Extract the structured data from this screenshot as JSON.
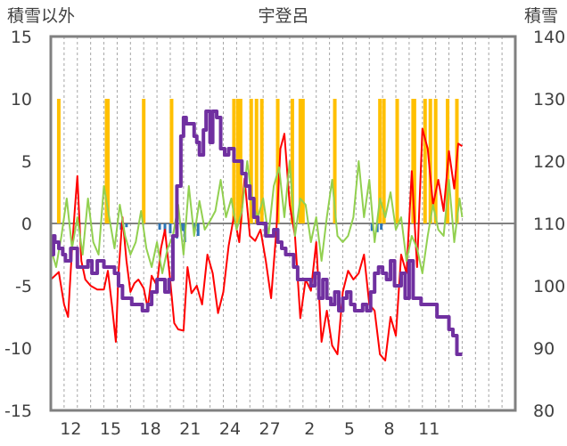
{
  "chart_data": {
    "type": "line",
    "title": "宇登呂",
    "left_axis_label": "積雪以外",
    "right_axis_label": "積雪",
    "left_ylim": [
      -15,
      15
    ],
    "left_yticks": [
      "15",
      "10",
      "5",
      "0",
      "-5",
      "-10",
      "-15"
    ],
    "right_ylim": [
      80,
      140
    ],
    "right_yticks": [
      "140",
      "130",
      "120",
      "110",
      "100",
      "90",
      "80"
    ],
    "xlim": [
      0,
      35
    ],
    "x_ticks": [
      {
        "x": 1.5,
        "label": "12"
      },
      {
        "x": 4.5,
        "label": "15"
      },
      {
        "x": 7.5,
        "label": "18"
      },
      {
        "x": 10.5,
        "label": "21"
      },
      {
        "x": 13.5,
        "label": "24"
      },
      {
        "x": 16.5,
        "label": "27"
      },
      {
        "x": 19.5,
        "label": "2"
      },
      {
        "x": 22.5,
        "label": "5"
      },
      {
        "x": 25.5,
        "label": "8"
      },
      {
        "x": 28.5,
        "label": "11"
      }
    ],
    "grid": "vertical dashed lines at each day, solid line at zero",
    "colors": {
      "temperature": "#ff0000",
      "wind": "#92d050",
      "snow_depth": "#7030a0",
      "snowfall_bar": "#ffc000",
      "precip_bar": "#2e75b6",
      "axis": "#808080",
      "grid": "#a6a6a6"
    },
    "series": [
      {
        "key": "temperature",
        "axis": "left",
        "x": [
          0,
          0.3,
          0.6,
          1.0,
          1.3,
          1.6,
          1.8,
          2.0,
          2.3,
          2.6,
          3.0,
          3.5,
          4.0,
          4.3,
          4.6,
          4.9,
          5.1,
          5.4,
          5.7,
          6.0,
          6.3,
          6.6,
          7.0,
          7.3,
          7.6,
          8.0,
          8.3,
          8.6,
          9.0,
          9.3,
          9.6,
          10.0,
          10.3,
          10.6,
          11.0,
          11.4,
          11.8,
          12.2,
          12.6,
          13.0,
          13.4,
          13.8,
          14.2,
          14.6,
          15.0,
          15.4,
          15.8,
          16.2,
          16.6,
          17.0,
          17.3,
          17.6,
          18.0,
          18.4,
          18.8,
          19.2,
          19.6,
          20.0,
          20.4,
          20.8,
          21.2,
          21.6,
          22.0,
          22.4,
          22.8,
          23.2,
          23.6,
          24.0,
          24.4,
          24.8,
          25.2,
          25.6,
          26.0,
          26.4,
          26.8,
          27.2,
          27.6,
          28.0,
          28.4,
          28.8,
          29.2,
          29.6,
          30.0,
          30.4,
          30.7,
          31.0
        ],
        "values": [
          -4.5,
          -4.2,
          -3.9,
          -6.5,
          -7.5,
          -2.0,
          1.0,
          3.8,
          -3.0,
          -4.5,
          -5.0,
          -5.3,
          -5.3,
          -3.8,
          -6.5,
          -9.5,
          -4.0,
          0.5,
          -3.0,
          -5.5,
          -4.8,
          -4.5,
          -5.2,
          -6.8,
          -4.2,
          -5.0,
          -2.0,
          -0.5,
          -4.6,
          -8.0,
          -8.5,
          -8.6,
          -3.5,
          -5.6,
          -5.0,
          -6.5,
          -2.5,
          -4.0,
          -7.2,
          -5.5,
          -1.8,
          0.6,
          -1.5,
          3.6,
          -1.0,
          -1.4,
          -0.5,
          -3.0,
          -6.0,
          -0.5,
          6.0,
          7.2,
          1.5,
          -1.0,
          -7.6,
          -4.5,
          -5.4,
          -1.5,
          -9.5,
          -7.0,
          -9.8,
          -10.5,
          -5.5,
          -3.8,
          -4.5,
          -4.0,
          -2.5,
          -6.5,
          -7.0,
          -10.5,
          -11.0,
          -7.5,
          -9.0,
          -2.5,
          -4.0,
          4.2,
          -3.5,
          7.6,
          6.0,
          1.5,
          3.5,
          1.0,
          5.8,
          2.8,
          6.4,
          6.2
        ]
      },
      {
        "key": "wind",
        "axis": "left",
        "x": [
          0,
          0.4,
          0.8,
          1.2,
          1.6,
          2.0,
          2.4,
          2.8,
          3.2,
          3.6,
          4.0,
          4.4,
          4.8,
          5.2,
          5.6,
          6.0,
          6.4,
          6.8,
          7.2,
          7.6,
          8.0,
          8.4,
          8.8,
          9.2,
          9.6,
          10.0,
          10.4,
          10.8,
          11.2,
          11.6,
          12.0,
          12.4,
          12.8,
          13.2,
          13.6,
          14.0,
          14.4,
          14.8,
          15.2,
          15.6,
          16.0,
          16.4,
          16.8,
          17.2,
          17.6,
          18.0,
          18.4,
          18.8,
          19.2,
          19.6,
          20.0,
          20.4,
          20.8,
          21.2,
          21.6,
          22.0,
          22.4,
          22.8,
          23.2,
          23.6,
          24.0,
          24.4,
          24.8,
          25.2,
          25.6,
          26.0,
          26.4,
          26.8,
          27.2,
          27.6,
          28.0,
          28.4,
          28.8,
          29.2,
          29.6,
          30.0,
          30.4,
          30.8,
          31.0
        ],
        "values": [
          -2.0,
          -3.5,
          -1.0,
          2.0,
          -2.0,
          0.5,
          -2.5,
          2.0,
          -1.5,
          -2.5,
          3.0,
          0.5,
          -2.0,
          1.5,
          -1.0,
          -2.5,
          -1.5,
          1.0,
          -2.0,
          -3.5,
          -1.5,
          -4.0,
          -2.0,
          -1.0,
          1.5,
          -2.5,
          3.0,
          -1.0,
          1.8,
          -0.5,
          0.2,
          1.0,
          3.5,
          0.5,
          2.0,
          -0.5,
          1.0,
          5.0,
          1.5,
          0.5,
          2.0,
          -1.0,
          3.0,
          4.5,
          0.5,
          5.0,
          -1.0,
          2.0,
          1.5,
          -1.5,
          0.5,
          -3.0,
          0.5,
          3.5,
          -1.0,
          -1.5,
          -1.0,
          0.5,
          5.0,
          0.5,
          3.5,
          -1.5,
          2.0,
          0.5,
          2.5,
          -0.5,
          0.5,
          -3.0,
          -1.0,
          -2.0,
          -4.0,
          -1.0,
          1.5,
          -0.5,
          -1.0,
          3.5,
          -1.5,
          2.0,
          0.5
        ]
      },
      {
        "key": "snow_depth",
        "axis": "right",
        "x": [
          0,
          0.2,
          0.3,
          0.6,
          0.9,
          1.1,
          1.5,
          2.0,
          2.4,
          2.8,
          3.1,
          3.5,
          4.0,
          4.4,
          4.8,
          5.1,
          5.4,
          5.8,
          6.1,
          6.5,
          6.9,
          7.3,
          7.6,
          8.0,
          8.3,
          8.6,
          8.9,
          9.2,
          9.5,
          9.8,
          10.0,
          10.2,
          10.5,
          10.8,
          11.0,
          11.2,
          11.5,
          11.7,
          12.0,
          12.2,
          12.5,
          12.8,
          13.1,
          13.4,
          13.8,
          14.1,
          14.4,
          14.7,
          15.0,
          15.3,
          15.6,
          15.9,
          16.2,
          16.5,
          16.8,
          17.1,
          17.4,
          17.7,
          18.0,
          18.3,
          18.6,
          19.0,
          19.3,
          19.6,
          19.9,
          20.2,
          20.5,
          20.8,
          21.1,
          21.4,
          21.7,
          22.0,
          22.3,
          22.6,
          22.9,
          23.2,
          23.5,
          23.8,
          24.1,
          24.4,
          24.7,
          25.0,
          25.3,
          25.6,
          25.9,
          26.1,
          26.4,
          26.7,
          27.0,
          27.3,
          27.6,
          27.9,
          28.2,
          28.5,
          28.8,
          29.1,
          29.4,
          29.7,
          30.0,
          30.3,
          30.6,
          31.0
        ],
        "values": [
          105,
          108,
          107,
          106,
          105,
          104,
          106,
          103,
          103,
          104,
          102,
          104,
          103,
          103,
          102,
          100,
          98,
          98,
          97,
          97,
          96,
          97,
          99,
          101,
          101,
          99,
          101,
          108,
          116,
          124,
          127,
          126,
          126,
          124,
          123,
          121,
          125,
          128,
          123,
          128,
          127,
          122,
          121,
          122,
          120,
          120,
          118,
          116,
          114,
          111,
          110,
          110,
          108,
          108,
          109,
          107,
          106,
          105,
          105,
          103,
          101,
          101,
          101,
          100,
          102,
          98,
          101,
          98,
          97,
          99,
          96,
          98,
          99,
          97,
          96,
          96,
          97,
          96,
          99,
          102,
          103,
          102,
          101,
          104,
          100,
          100,
          102,
          98,
          104,
          98,
          98,
          97,
          97,
          97,
          97,
          95,
          95,
          95,
          93,
          92,
          89,
          89
        ]
      }
    ],
    "bars": [
      {
        "key": "snowfall_bar",
        "axis": "left",
        "x": [
          0.6,
          4.2,
          4.3,
          7.0,
          9.1,
          13.8,
          14.1,
          14.3,
          15.1,
          15.5,
          15.9,
          17.1,
          18.2,
          18.8,
          19.0,
          21.4,
          24.8,
          25.1,
          26.1,
          27.3,
          27.4,
          28.2,
          28.6,
          29.0,
          29.9,
          30.6
        ],
        "values": [
          10,
          10,
          10,
          10,
          10,
          10,
          10,
          10,
          10,
          10,
          10,
          10,
          10,
          10,
          10,
          10,
          10,
          10,
          10,
          10,
          10,
          10,
          10,
          10,
          10,
          10
        ]
      },
      {
        "key": "precip_bar",
        "axis": "left",
        "x": [
          5.3,
          5.7,
          8.2,
          8.6,
          9.0,
          9.5,
          9.9,
          10.1,
          10.8,
          11.1,
          24.2,
          24.6,
          24.9
        ],
        "values": [
          -0.5,
          -0.3,
          -0.5,
          -1.0,
          -0.8,
          -1.2,
          -0.6,
          -1.5,
          -0.5,
          -1.0,
          -0.6,
          -0.7,
          -0.5
        ]
      }
    ]
  }
}
